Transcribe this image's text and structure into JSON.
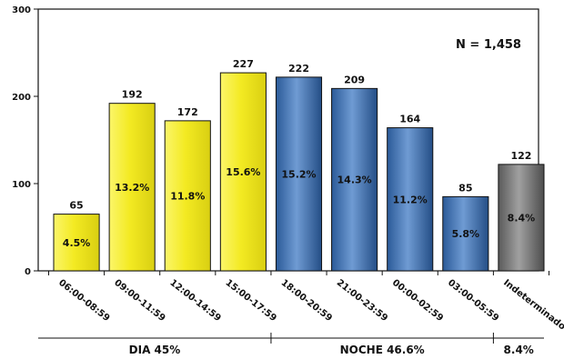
{
  "chart_data": {
    "type": "bar",
    "categories": [
      "06:00-08:59",
      "09:00-11:59",
      "12:00-14:59",
      "15:00-17:59",
      "18:00-20:59",
      "21:00-23:59",
      "00:00-02:59",
      "03:00-05:59",
      "Indeterminado"
    ],
    "values": [
      65,
      192,
      172,
      227,
      222,
      209,
      164,
      85,
      122
    ],
    "percent_labels": [
      "4.5%",
      "13.2%",
      "11.8%",
      "15.6%",
      "15.2%",
      "14.3%",
      "11.2%",
      "5.8%",
      "8.4%"
    ],
    "bar_colors": [
      "yellow",
      "yellow",
      "yellow",
      "yellow",
      "blue",
      "blue",
      "blue",
      "blue",
      "gray"
    ],
    "palette": {
      "yellow": "#f2ea2a",
      "blue": "#4a78b4",
      "gray": "#7a7a7a"
    },
    "ylim": [
      0,
      300
    ],
    "yticks": [
      0,
      100,
      200,
      300
    ],
    "annotation": "N = 1,458",
    "groups": [
      {
        "label": "DIA 45%",
        "from": 0,
        "to": 3
      },
      {
        "label": "NOCHE 46.6%",
        "from": 4,
        "to": 7
      },
      {
        "label": "8.4%",
        "from": 8,
        "to": 8
      }
    ],
    "grid": false
  }
}
